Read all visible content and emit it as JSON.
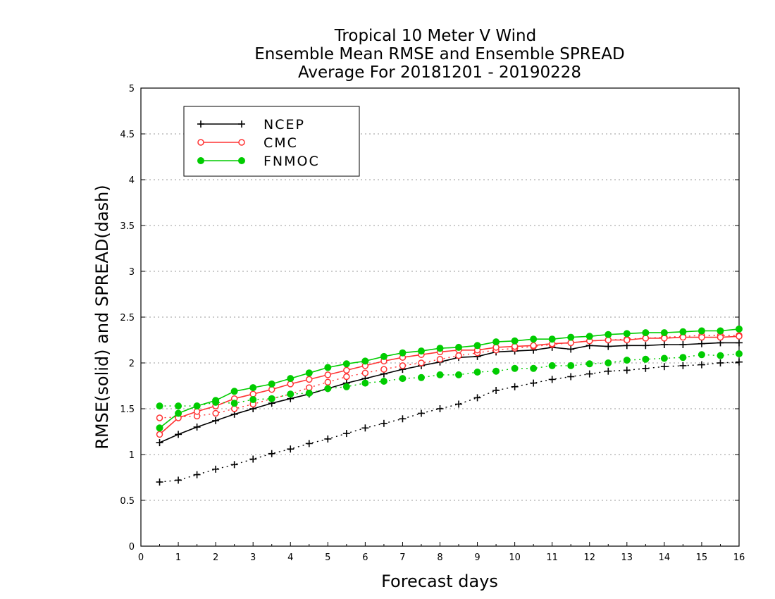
{
  "chart_data": {
    "type": "line",
    "title": [
      "Tropical 10 Meter V Wind",
      "Ensemble Mean RMSE and Ensemble SPREAD",
      "Average For 20181201 - 20190228"
    ],
    "xlabel": "Forecast days",
    "ylabel": "RMSE(solid)  and  SPREAD(dash)",
    "xlim": [
      0,
      16
    ],
    "ylim": [
      0,
      5
    ],
    "xticks": [
      0,
      1,
      2,
      3,
      4,
      5,
      6,
      7,
      8,
      9,
      10,
      11,
      12,
      13,
      14,
      15,
      16
    ],
    "yticks": [
      0,
      0.5,
      1,
      1.5,
      2,
      2.5,
      3,
      3.5,
      4,
      4.5,
      5
    ],
    "ytick_labels": [
      "0",
      "0.5",
      "1",
      "1.5",
      "2",
      "2.5",
      "3",
      "3.5",
      "4",
      "4.5",
      "5"
    ],
    "grid": "horizontal dotted",
    "legend_position": "top-left",
    "x": [
      0.5,
      1,
      1.5,
      2,
      2.5,
      3,
      3.5,
      4,
      4.5,
      5,
      5.5,
      6,
      6.5,
      7,
      7.5,
      8,
      8.5,
      9,
      9.5,
      10,
      10.5,
      11,
      11.5,
      12,
      12.5,
      13,
      13.5,
      14,
      14.5,
      15,
      15.5,
      16
    ],
    "series": [
      {
        "name": "NCEP",
        "color": "#000000",
        "marker": "plus",
        "rmse": [
          1.13,
          1.22,
          1.3,
          1.37,
          1.44,
          1.5,
          1.56,
          1.61,
          1.66,
          1.72,
          1.78,
          1.83,
          1.88,
          1.93,
          1.97,
          2.01,
          2.06,
          2.07,
          2.12,
          2.13,
          2.14,
          2.17,
          2.15,
          2.19,
          2.18,
          2.19,
          2.19,
          2.2,
          2.2,
          2.21,
          2.22,
          2.22
        ],
        "spread": [
          0.7,
          0.72,
          0.78,
          0.84,
          0.89,
          0.95,
          1.01,
          1.06,
          1.12,
          1.17,
          1.23,
          1.29,
          1.34,
          1.39,
          1.45,
          1.5,
          1.55,
          1.62,
          1.7,
          1.74,
          1.78,
          1.82,
          1.85,
          1.88,
          1.91,
          1.92,
          1.94,
          1.96,
          1.97,
          1.98,
          2.0,
          2.01
        ]
      },
      {
        "name": "CMC",
        "color": "#ff3333",
        "marker": "open-circle",
        "rmse": [
          1.22,
          1.4,
          1.47,
          1.53,
          1.61,
          1.66,
          1.71,
          1.77,
          1.82,
          1.87,
          1.92,
          1.97,
          2.02,
          2.06,
          2.09,
          2.12,
          2.14,
          2.14,
          2.17,
          2.18,
          2.19,
          2.21,
          2.22,
          2.24,
          2.25,
          2.25,
          2.27,
          2.27,
          2.28,
          2.28,
          2.28,
          2.29
        ],
        "spread": [
          1.4,
          1.41,
          1.42,
          1.45,
          1.5,
          1.55,
          1.61,
          1.66,
          1.73,
          1.79,
          1.85,
          1.89,
          1.93,
          1.97,
          2.0,
          2.04,
          2.08,
          2.11,
          2.14,
          2.16,
          2.18,
          2.2,
          2.22,
          2.24,
          2.25,
          2.26,
          2.27,
          2.28,
          2.29,
          2.3,
          2.3,
          2.3
        ]
      },
      {
        "name": "FNMOC",
        "color": "#00cc00",
        "marker": "filled-circle",
        "rmse": [
          1.29,
          1.45,
          1.53,
          1.59,
          1.69,
          1.73,
          1.77,
          1.83,
          1.89,
          1.95,
          1.99,
          2.02,
          2.07,
          2.11,
          2.13,
          2.16,
          2.17,
          2.19,
          2.23,
          2.24,
          2.26,
          2.26,
          2.28,
          2.29,
          2.31,
          2.32,
          2.33,
          2.33,
          2.34,
          2.35,
          2.35,
          2.37
        ],
        "spread": [
          1.53,
          1.53,
          1.53,
          1.57,
          1.56,
          1.6,
          1.61,
          1.66,
          1.67,
          1.72,
          1.74,
          1.78,
          1.8,
          1.83,
          1.84,
          1.87,
          1.87,
          1.9,
          1.91,
          1.94,
          1.94,
          1.97,
          1.97,
          1.99,
          2.0,
          2.03,
          2.04,
          2.05,
          2.06,
          2.09,
          2.08,
          2.1
        ]
      }
    ]
  }
}
